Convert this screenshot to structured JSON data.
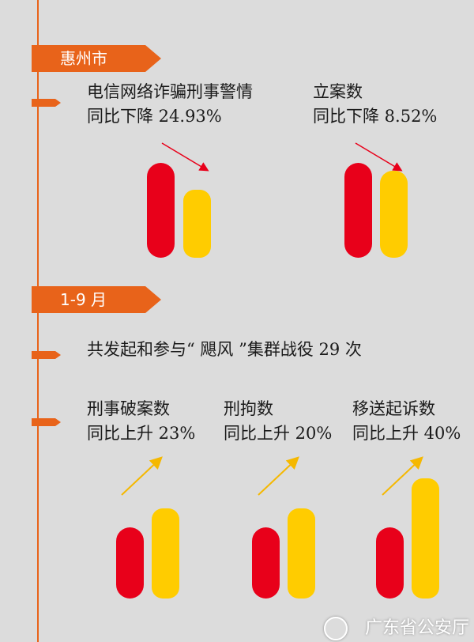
{
  "section1": {
    "tag": "惠州市",
    "item1": {
      "title": "电信网络诈骗刑事警情",
      "change": "同比下降 24.93%",
      "value": 24.93,
      "direction": "down"
    },
    "item2": {
      "title": "立案数",
      "change": "同比下降 8.52%",
      "value": 8.52,
      "direction": "down"
    }
  },
  "section2": {
    "tag": "1-9 月",
    "summary": "共发起和参与“ 飓风 ”集群战役 29 次",
    "items": [
      {
        "title": "刑事破案数",
        "change": "同比上升 23%",
        "value": 23,
        "direction": "up"
      },
      {
        "title": "刑拘数",
        "change": "同比上升 20%",
        "value": 20,
        "direction": "up"
      },
      {
        "title": "移送起诉数",
        "change": "同比上升 40%",
        "value": 40,
        "direction": "up"
      }
    ]
  },
  "colors": {
    "accent": "#e8631a",
    "previous": "#e8001a",
    "current": "#ffcc00",
    "down_arrow": "#e8001a",
    "up_arrow": "#f5b800"
  },
  "watermark": {
    "text": "广东省公安厅",
    "icon": "police-emblem-icon"
  }
}
